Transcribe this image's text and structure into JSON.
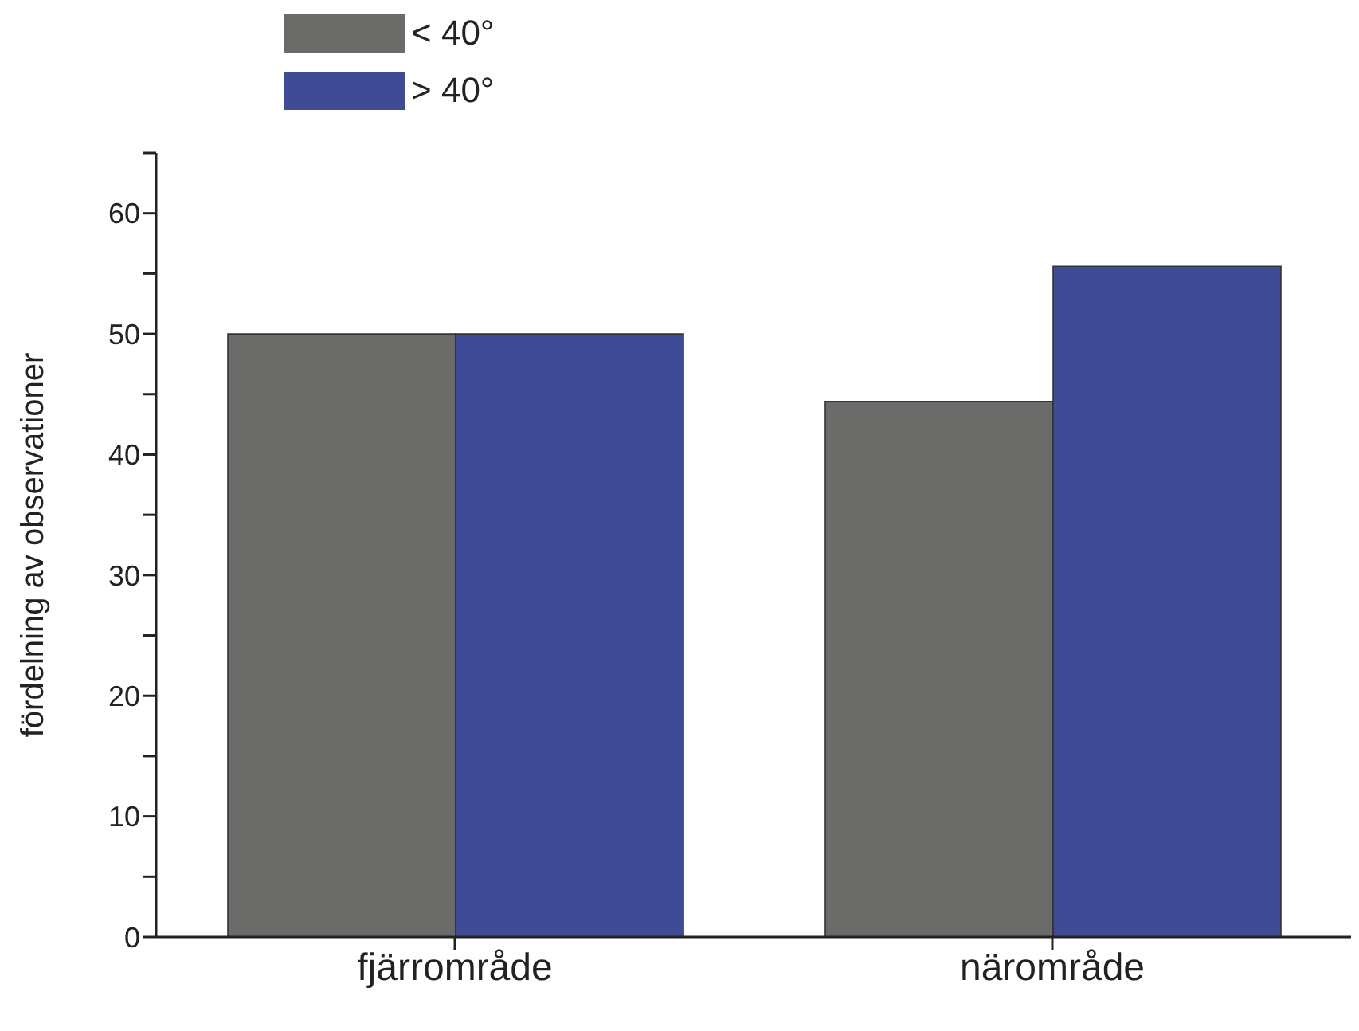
{
  "chart_data": {
    "type": "bar",
    "ylabel": "fördelning av observationer",
    "categories": [
      "fjärrområde",
      "närområde"
    ],
    "series": [
      {
        "name": "< 40°",
        "color": "#6b6b69",
        "values": [
          50,
          44.4
        ]
      },
      {
        "name": "> 40°",
        "color": "#3f4b94",
        "values": [
          50,
          55.6
        ]
      }
    ],
    "ylim": [
      0,
      65
    ],
    "yticks": [
      0,
      {
        "value": 5,
        "label": null
      },
      10,
      {
        "value": 15,
        "label": null
      },
      20,
      {
        "value": 25,
        "label": null
      },
      30,
      {
        "value": 35,
        "label": null
      },
      40,
      {
        "value": 45,
        "label": null
      },
      50,
      {
        "value": 55,
        "label": null
      },
      60,
      {
        "value": 65,
        "label": null
      }
    ],
    "grid": false,
    "legend": "top left"
  }
}
